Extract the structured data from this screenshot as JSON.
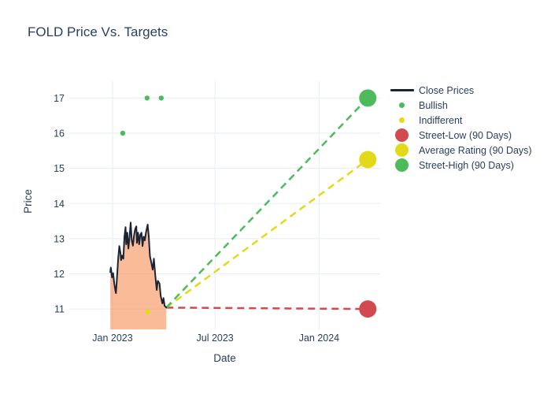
{
  "chart_data": {
    "type": "line",
    "title": "FOLD Price Vs. Targets",
    "xlabel": "Date",
    "ylabel": "Price",
    "colors": {
      "text": "#2a3f5f",
      "grid": "#ebf0f8",
      "close_line": "#1b2437",
      "close_fill": "rgba(246,142,84,0.6)",
      "bullish_green": "#4dbb5c",
      "indifferent_yellow": "#e2da18",
      "street_low_red": "#d2494f",
      "background": "#ffffff"
    },
    "x_axis": {
      "range_days": [
        -76.5,
        472.9
      ],
      "ticks": [
        {
          "label": "Jan 2023",
          "day": 0
        },
        {
          "label": "Jul 2023",
          "day": 181
        },
        {
          "label": "Jan 2024",
          "day": 365
        }
      ]
    },
    "y_axis": {
      "range": [
        10.42,
        17.48
      ],
      "ticks": [
        11,
        12,
        13,
        14,
        15,
        16,
        17
      ]
    },
    "close_prices": {
      "name": "Close Prices",
      "points": [
        [
          -4,
          12.05
        ],
        [
          -3,
          12.18
        ],
        [
          -1,
          11.9
        ],
        [
          1,
          12.02
        ],
        [
          3,
          11.72
        ],
        [
          5,
          11.52
        ],
        [
          6,
          11.45
        ],
        [
          8,
          11.95
        ],
        [
          10,
          12.45
        ],
        [
          12,
          12.79
        ],
        [
          14,
          12.58
        ],
        [
          15,
          12.39
        ],
        [
          17,
          12.52
        ],
        [
          19,
          12.43
        ],
        [
          21,
          13.06
        ],
        [
          23,
          13.33
        ],
        [
          24,
          12.84
        ],
        [
          26,
          13.17
        ],
        [
          28,
          12.72
        ],
        [
          30,
          13.06
        ],
        [
          32,
          13.46
        ],
        [
          34,
          12.95
        ],
        [
          36,
          12.8
        ],
        [
          38,
          13.1
        ],
        [
          40,
          13.28
        ],
        [
          42,
          13.35
        ],
        [
          43,
          12.88
        ],
        [
          45,
          13.17
        ],
        [
          47,
          12.84
        ],
        [
          49,
          13.11
        ],
        [
          51,
          13.17
        ],
        [
          53,
          12.79
        ],
        [
          55,
          13.06
        ],
        [
          57,
          12.95
        ],
        [
          59,
          13.17
        ],
        [
          62,
          13.4
        ],
        [
          64,
          13.06
        ],
        [
          66,
          12.5
        ],
        [
          69,
          12.28
        ],
        [
          71,
          12.12
        ],
        [
          73,
          12.43
        ],
        [
          75,
          12.05
        ],
        [
          78,
          11.54
        ],
        [
          80,
          11.8
        ],
        [
          83,
          11.72
        ],
        [
          85,
          11.38
        ],
        [
          88,
          11.16
        ],
        [
          90,
          11.31
        ],
        [
          92,
          11.09
        ],
        [
          95,
          11.04
        ]
      ]
    },
    "analyst_markers": [
      {
        "name": "Bullish",
        "color": "#4dbb5c",
        "points": [
          [
            18,
            16.0
          ],
          [
            61,
            17.0
          ],
          [
            86,
            17.0
          ]
        ]
      },
      {
        "name": "Indifferent",
        "color": "#e2da18",
        "points": [
          [
            62,
            10.92
          ]
        ]
      }
    ],
    "targets": {
      "day": 451,
      "items": [
        {
          "name": "Street-Low (90 Days)",
          "price": 11.0,
          "color": "#d2494f"
        },
        {
          "name": "Average Rating (90 Days)",
          "price": 15.25,
          "color": "#e2da18"
        },
        {
          "name": "Street-High (90 Days)",
          "price": 17.0,
          "color": "#4dbb5c"
        }
      ]
    },
    "legend": {
      "entries": [
        {
          "label": "Close Prices",
          "swatch": "line",
          "color": "#1b2437"
        },
        {
          "label": "Bullish",
          "swatch": "dot",
          "color": "#4dbb5c"
        },
        {
          "label": "Indifferent",
          "swatch": "dot",
          "color": "#e2da18"
        },
        {
          "label": "Street-Low (90 Days)",
          "swatch": "bubble",
          "color": "#d2494f"
        },
        {
          "label": "Average Rating (90 Days)",
          "swatch": "bubble",
          "color": "#e2da18"
        },
        {
          "label": "Street-High (90 Days)",
          "swatch": "bubble",
          "color": "#4dbb5c"
        }
      ]
    }
  }
}
